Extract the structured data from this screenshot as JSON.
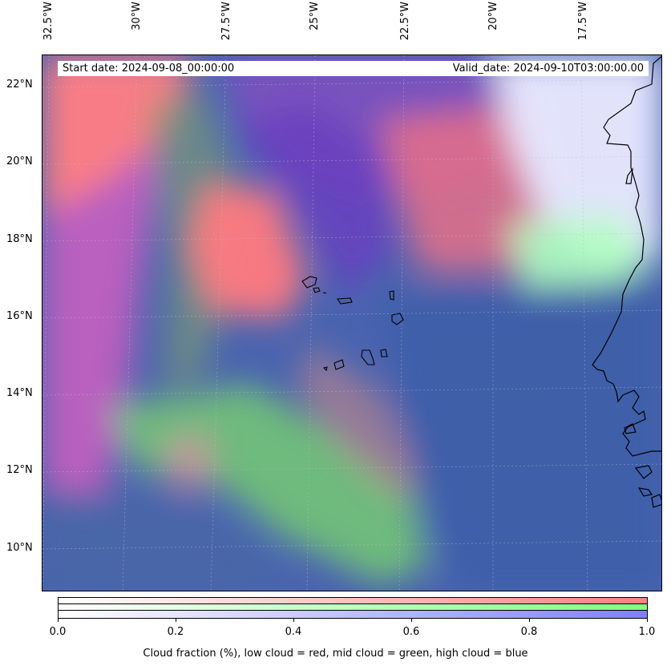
{
  "header": {
    "start_date": "Start date: 2024-09-08_00:00:00",
    "valid_date": "Valid_date: 2024-09-10T03:00:00.00"
  },
  "longitude_labels": [
    "32.5°W",
    "30°W",
    "27.5°W",
    "25°W",
    "22.5°W",
    "20°W",
    "17.5°W"
  ],
  "latitude_labels": [
    "22°N",
    "20°N",
    "18°N",
    "16°N",
    "14°N",
    "12°N",
    "10°N"
  ],
  "colorbar": {
    "ticks": [
      "0.0",
      "0.2",
      "0.4",
      "0.6",
      "0.8",
      "1.0"
    ],
    "caption": "Cloud fraction (%), low cloud = red, mid cloud = green, high cloud = blue",
    "colors": {
      "low": "#ff7f7f",
      "mid": "#7fff7f",
      "high": "#7f7fff",
      "background": "#4a6aa8"
    }
  },
  "map_features": [
    "coastline",
    "cape-verde-islands",
    "graticule"
  ]
}
